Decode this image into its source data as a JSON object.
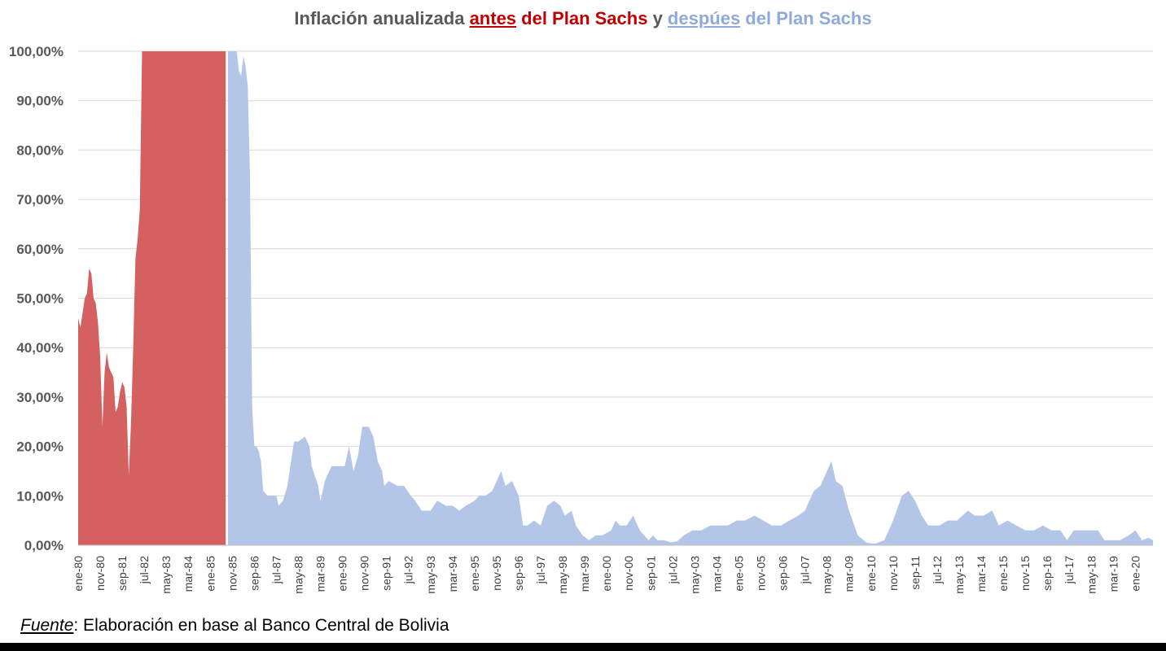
{
  "chart_data": {
    "type": "area",
    "title": {
      "p1": "Inflación anualizada ",
      "before_word": "antes",
      "p2": " del Plan Sachs",
      "p3": " y ",
      "after_word": "despúes",
      "p4": " del Plan Sachs"
    },
    "source": {
      "label": "Fuente",
      "text": ": Elaboración en base al Banco Central de Bolivia"
    },
    "ylim": [
      0,
      100
    ],
    "y_ticks": [
      "0,00%",
      "10,00%",
      "20,00%",
      "30,00%",
      "40,00%",
      "50,00%",
      "60,00%",
      "70,00%",
      "80,00%",
      "90,00%",
      "100,00%"
    ],
    "x_ticks": [
      "ene-80",
      "nov-80",
      "sep-81",
      "jul-82",
      "may-83",
      "mar-84",
      "ene-85",
      "nov-85",
      "sep-86",
      "jul-87",
      "may-88",
      "mar-89",
      "ene-90",
      "nov-90",
      "sep-91",
      "jul-92",
      "may-93",
      "mar-94",
      "ene-95",
      "nov-95",
      "sep-96",
      "jul-97",
      "may-98",
      "mar-99",
      "ene-00",
      "nov-00",
      "sep-01",
      "jul-02",
      "may-03",
      "mar-04",
      "ene-05",
      "nov-05",
      "sep-06",
      "jul-07",
      "may-08",
      "mar-09",
      "ene-10",
      "nov-10",
      "sep-11",
      "jul-12",
      "may-13",
      "mar-14",
      "ene-15",
      "nov-15",
      "sep-16",
      "jul-17",
      "may-18",
      "mar-19",
      "ene-20"
    ],
    "x_start": "1980-01",
    "x_end": "2020-09",
    "grid": true,
    "legend": "none (colored words in title)",
    "series": [
      {
        "name": "antes del Plan Sachs",
        "color": "#d46060",
        "points": [
          [
            "1980-01",
            46
          ],
          [
            "1980-02",
            44
          ],
          [
            "1980-03",
            47
          ],
          [
            "1980-04",
            50
          ],
          [
            "1980-05",
            51
          ],
          [
            "1980-06",
            56
          ],
          [
            "1980-07",
            55
          ],
          [
            "1980-08",
            50
          ],
          [
            "1980-09",
            49
          ],
          [
            "1980-10",
            45
          ],
          [
            "1980-11",
            38
          ],
          [
            "1980-12",
            24
          ],
          [
            "1981-01",
            35
          ],
          [
            "1981-02",
            39
          ],
          [
            "1981-03",
            36
          ],
          [
            "1981-04",
            35
          ],
          [
            "1981-05",
            34
          ],
          [
            "1981-06",
            27
          ],
          [
            "1981-07",
            28
          ],
          [
            "1981-08",
            31
          ],
          [
            "1981-09",
            33
          ],
          [
            "1981-10",
            32
          ],
          [
            "1981-11",
            28
          ],
          [
            "1981-12",
            14
          ],
          [
            "1982-01",
            25
          ],
          [
            "1982-02",
            40
          ],
          [
            "1982-03",
            58
          ],
          [
            "1982-04",
            62
          ],
          [
            "1982-05",
            68
          ],
          [
            "1982-06",
            100
          ],
          [
            "1985-08",
            100
          ]
        ]
      },
      {
        "name": "despúes del Plan Sachs",
        "color": "#b4c6e7",
        "points": [
          [
            "1985-09",
            100
          ],
          [
            "1986-01",
            100
          ],
          [
            "1986-02",
            96
          ],
          [
            "1986-03",
            95
          ],
          [
            "1986-04",
            99
          ],
          [
            "1986-05",
            97
          ],
          [
            "1986-06",
            93
          ],
          [
            "1986-07",
            75
          ],
          [
            "1986-08",
            28
          ],
          [
            "1986-09",
            20
          ],
          [
            "1986-10",
            20
          ],
          [
            "1986-11",
            19
          ],
          [
            "1986-12",
            17
          ],
          [
            "1987-01",
            11
          ],
          [
            "1987-03",
            10
          ],
          [
            "1987-05",
            10
          ],
          [
            "1987-07",
            10
          ],
          [
            "1987-08",
            8
          ],
          [
            "1987-10",
            9
          ],
          [
            "1987-12",
            12
          ],
          [
            "1988-03",
            21
          ],
          [
            "1988-05",
            21
          ],
          [
            "1988-08",
            22
          ],
          [
            "1988-10",
            20
          ],
          [
            "1988-11",
            16
          ],
          [
            "1989-02",
            12
          ],
          [
            "1989-03",
            9
          ],
          [
            "1989-05",
            13
          ],
          [
            "1989-08",
            16
          ],
          [
            "1989-11",
            16
          ],
          [
            "1990-02",
            16
          ],
          [
            "1990-04",
            20
          ],
          [
            "1990-06",
            15
          ],
          [
            "1990-08",
            18
          ],
          [
            "1990-10",
            24
          ],
          [
            "1991-01",
            24
          ],
          [
            "1991-03",
            22
          ],
          [
            "1991-05",
            17
          ],
          [
            "1991-07",
            15
          ],
          [
            "1991-08",
            12
          ],
          [
            "1991-10",
            13
          ],
          [
            "1992-02",
            12
          ],
          [
            "1992-05",
            12
          ],
          [
            "1992-08",
            10
          ],
          [
            "1992-10",
            9
          ],
          [
            "1993-01",
            7
          ],
          [
            "1993-05",
            7
          ],
          [
            "1993-08",
            9
          ],
          [
            "1993-12",
            8
          ],
          [
            "1994-03",
            8
          ],
          [
            "1994-06",
            7
          ],
          [
            "1994-09",
            8
          ],
          [
            "1995-01",
            9
          ],
          [
            "1995-03",
            10
          ],
          [
            "1995-06",
            10
          ],
          [
            "1995-09",
            11
          ],
          [
            "1996-01",
            15
          ],
          [
            "1996-03",
            12
          ],
          [
            "1996-06",
            13
          ],
          [
            "1996-09",
            10
          ],
          [
            "1996-11",
            4
          ],
          [
            "1997-01",
            4
          ],
          [
            "1997-04",
            5
          ],
          [
            "1997-07",
            4
          ],
          [
            "1997-10",
            8
          ],
          [
            "1998-01",
            9
          ],
          [
            "1998-04",
            8
          ],
          [
            "1998-06",
            6
          ],
          [
            "1998-09",
            7
          ],
          [
            "1998-11",
            4
          ],
          [
            "1999-02",
            2
          ],
          [
            "1999-05",
            1
          ],
          [
            "1999-08",
            2
          ],
          [
            "1999-11",
            2
          ],
          [
            "2000-03",
            3
          ],
          [
            "2000-05",
            5
          ],
          [
            "2000-07",
            4
          ],
          [
            "2000-10",
            4
          ],
          [
            "2001-01",
            6
          ],
          [
            "2001-04",
            3
          ],
          [
            "2001-08",
            1
          ],
          [
            "2001-10",
            2
          ],
          [
            "2001-12",
            1
          ],
          [
            "2002-03",
            1
          ],
          [
            "2002-06",
            0.6
          ],
          [
            "2002-09",
            0.8
          ],
          [
            "2002-12",
            2
          ],
          [
            "2003-04",
            3
          ],
          [
            "2003-08",
            3
          ],
          [
            "2003-12",
            4
          ],
          [
            "2004-04",
            4
          ],
          [
            "2004-08",
            4
          ],
          [
            "2004-12",
            5
          ],
          [
            "2005-04",
            5
          ],
          [
            "2005-08",
            6
          ],
          [
            "2005-12",
            5
          ],
          [
            "2006-04",
            4
          ],
          [
            "2006-08",
            4
          ],
          [
            "2006-12",
            5
          ],
          [
            "2007-04",
            6
          ],
          [
            "2007-07",
            7
          ],
          [
            "2007-11",
            11
          ],
          [
            "2008-02",
            12
          ],
          [
            "2008-05",
            15
          ],
          [
            "2008-07",
            17
          ],
          [
            "2008-09",
            13
          ],
          [
            "2008-12",
            12
          ],
          [
            "2009-03",
            7
          ],
          [
            "2009-07",
            2
          ],
          [
            "2009-11",
            0.5
          ],
          [
            "2010-03",
            0.3
          ],
          [
            "2010-07",
            1
          ],
          [
            "2010-11",
            5
          ],
          [
            "2011-03",
            10
          ],
          [
            "2011-06",
            11
          ],
          [
            "2011-09",
            9
          ],
          [
            "2011-12",
            6
          ],
          [
            "2012-03",
            4
          ],
          [
            "2012-08",
            4
          ],
          [
            "2012-12",
            5
          ],
          [
            "2013-04",
            5
          ],
          [
            "2013-09",
            7
          ],
          [
            "2013-12",
            6
          ],
          [
            "2014-04",
            6
          ],
          [
            "2014-08",
            7
          ],
          [
            "2014-11",
            4
          ],
          [
            "2015-03",
            5
          ],
          [
            "2015-07",
            4
          ],
          [
            "2015-11",
            3
          ],
          [
            "2016-03",
            3
          ],
          [
            "2016-07",
            4
          ],
          [
            "2016-11",
            3
          ],
          [
            "2017-03",
            3
          ],
          [
            "2017-06",
            1
          ],
          [
            "2017-09",
            3
          ],
          [
            "2017-12",
            3
          ],
          [
            "2018-04",
            3
          ],
          [
            "2018-08",
            3
          ],
          [
            "2018-11",
            1
          ],
          [
            "2019-02",
            1
          ],
          [
            "2019-06",
            1
          ],
          [
            "2019-10",
            2
          ],
          [
            "2020-01",
            3
          ],
          [
            "2020-04",
            1
          ],
          [
            "2020-07",
            1.5
          ],
          [
            "2020-09",
            1
          ]
        ]
      }
    ]
  }
}
